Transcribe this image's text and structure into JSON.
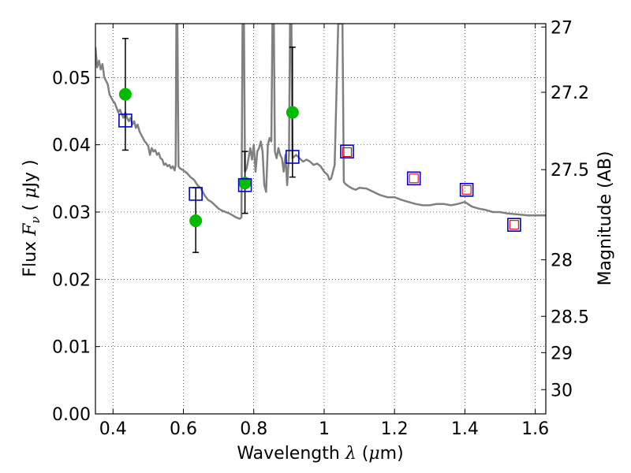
{
  "chart_data": {
    "type": "scatter",
    "xlabel": {
      "prefix": "Wavelength  ",
      "symbol": "λ",
      "suffix": " (",
      "unit_mu": "μ",
      "unit_rest": "m)"
    },
    "ylabel": {
      "prefix": "Flux  ",
      "symbol": "F",
      "subscript": "ν",
      "suffix": "  (  ",
      "unit_mu": "μ",
      "unit_rest": "Jy  )"
    },
    "y2label": "Magnitude (AB)",
    "xlim": [
      0.35,
      1.63
    ],
    "ylim": [
      0.0,
      0.058
    ],
    "grid": true,
    "x_ticks": [
      {
        "v": 0.4,
        "label": "0.4"
      },
      {
        "v": 0.6,
        "label": "0.6"
      },
      {
        "v": 0.8,
        "label": "0.8"
      },
      {
        "v": 1.0,
        "label": "1"
      },
      {
        "v": 1.2,
        "label": "1.2"
      },
      {
        "v": 1.4,
        "label": "1.4"
      },
      {
        "v": 1.6,
        "label": "1.6"
      }
    ],
    "y_ticks": [
      {
        "v": 0.0,
        "label": "0.00"
      },
      {
        "v": 0.01,
        "label": "0.01"
      },
      {
        "v": 0.02,
        "label": "0.02"
      },
      {
        "v": 0.03,
        "label": "0.03"
      },
      {
        "v": 0.04,
        "label": "0.04"
      },
      {
        "v": 0.05,
        "label": "0.05"
      }
    ],
    "y2_ticks": [
      {
        "flux": 0.0575,
        "label": "27"
      },
      {
        "flux": 0.0478,
        "label": "27.2"
      },
      {
        "flux": 0.0363,
        "label": "27.5"
      },
      {
        "flux": 0.0229,
        "label": "28"
      },
      {
        "flux": 0.0145,
        "label": "28.5"
      },
      {
        "flux": 0.0091,
        "label": "29"
      },
      {
        "flux": 0.0036,
        "label": "30"
      }
    ],
    "series": [
      {
        "kind": "line",
        "color": "#808080",
        "points": [
          [
            0.35,
            0.0545
          ],
          [
            0.355,
            0.0515
          ],
          [
            0.36,
            0.0525
          ],
          [
            0.365,
            0.0512
          ],
          [
            0.37,
            0.052
          ],
          [
            0.375,
            0.05
          ],
          [
            0.38,
            0.0495
          ],
          [
            0.385,
            0.049
          ],
          [
            0.39,
            0.0475
          ],
          [
            0.395,
            0.047
          ],
          [
            0.4,
            0.0465
          ],
          [
            0.405,
            0.0462
          ],
          [
            0.41,
            0.0455
          ],
          [
            0.415,
            0.0448
          ],
          [
            0.42,
            0.0452
          ],
          [
            0.425,
            0.0445
          ],
          [
            0.43,
            0.044
          ],
          [
            0.435,
            0.0448
          ],
          [
            0.44,
            0.044
          ],
          [
            0.445,
            0.0435
          ],
          [
            0.45,
            0.044
          ],
          [
            0.455,
            0.043
          ],
          [
            0.46,
            0.0435
          ],
          [
            0.465,
            0.0425
          ],
          [
            0.47,
            0.043
          ],
          [
            0.475,
            0.042
          ],
          [
            0.48,
            0.0415
          ],
          [
            0.485,
            0.041
          ],
          [
            0.49,
            0.0405
          ],
          [
            0.495,
            0.0402
          ],
          [
            0.5,
            0.0398
          ],
          [
            0.505,
            0.0385
          ],
          [
            0.51,
            0.0395
          ],
          [
            0.515,
            0.039
          ],
          [
            0.52,
            0.0392
          ],
          [
            0.525,
            0.0385
          ],
          [
            0.53,
            0.0388
          ],
          [
            0.535,
            0.038
          ],
          [
            0.54,
            0.0378
          ],
          [
            0.545,
            0.037
          ],
          [
            0.55,
            0.0372
          ],
          [
            0.555,
            0.0368
          ],
          [
            0.56,
            0.037
          ],
          [
            0.565,
            0.0365
          ],
          [
            0.57,
            0.0368
          ],
          [
            0.575,
            0.0362
          ],
          [
            0.578,
            0.037
          ],
          [
            0.58,
            0.058
          ],
          [
            0.583,
            0.058
          ],
          [
            0.586,
            0.0368
          ],
          [
            0.59,
            0.0365
          ],
          [
            0.6,
            0.0362
          ],
          [
            0.61,
            0.0358
          ],
          [
            0.62,
            0.0352
          ],
          [
            0.63,
            0.0348
          ],
          [
            0.64,
            0.034
          ],
          [
            0.65,
            0.0335
          ],
          [
            0.66,
            0.0325
          ],
          [
            0.67,
            0.0318
          ],
          [
            0.68,
            0.0315
          ],
          [
            0.69,
            0.031
          ],
          [
            0.7,
            0.0305
          ],
          [
            0.71,
            0.0302
          ],
          [
            0.72,
            0.03
          ],
          [
            0.73,
            0.0298
          ],
          [
            0.74,
            0.0295
          ],
          [
            0.75,
            0.0292
          ],
          [
            0.76,
            0.029
          ],
          [
            0.765,
            0.0292
          ],
          [
            0.768,
            0.058
          ],
          [
            0.772,
            0.058
          ],
          [
            0.775,
            0.036
          ],
          [
            0.78,
            0.0365
          ],
          [
            0.785,
            0.038
          ],
          [
            0.79,
            0.0395
          ],
          [
            0.795,
            0.0378
          ],
          [
            0.8,
            0.04
          ],
          [
            0.805,
            0.036
          ],
          [
            0.81,
            0.039
          ],
          [
            0.815,
            0.0395
          ],
          [
            0.82,
            0.0405
          ],
          [
            0.825,
            0.039
          ],
          [
            0.83,
            0.034
          ],
          [
            0.835,
            0.033
          ],
          [
            0.84,
            0.04
          ],
          [
            0.845,
            0.041
          ],
          [
            0.85,
            0.0405
          ],
          [
            0.853,
            0.058
          ],
          [
            0.857,
            0.058
          ],
          [
            0.86,
            0.039
          ],
          [
            0.865,
            0.038
          ],
          [
            0.87,
            0.0395
          ],
          [
            0.875,
            0.0385
          ],
          [
            0.88,
            0.038
          ],
          [
            0.885,
            0.036
          ],
          [
            0.89,
            0.0385
          ],
          [
            0.895,
            0.034
          ],
          [
            0.9,
            0.0385
          ],
          [
            0.903,
            0.058
          ],
          [
            0.907,
            0.058
          ],
          [
            0.91,
            0.038
          ],
          [
            0.92,
            0.0385
          ],
          [
            0.93,
            0.038
          ],
          [
            0.94,
            0.0375
          ],
          [
            0.95,
            0.0378
          ],
          [
            0.96,
            0.0375
          ],
          [
            0.97,
            0.037
          ],
          [
            0.98,
            0.0372
          ],
          [
            0.99,
            0.0368
          ],
          [
            1.0,
            0.036
          ],
          [
            1.01,
            0.0355
          ],
          [
            1.015,
            0.0348
          ],
          [
            1.02,
            0.035
          ],
          [
            1.025,
            0.036
          ],
          [
            1.03,
            0.037
          ],
          [
            1.04,
            0.058
          ],
          [
            1.052,
            0.058
          ],
          [
            1.056,
            0.0345
          ],
          [
            1.06,
            0.0342
          ],
          [
            1.07,
            0.0338
          ],
          [
            1.08,
            0.0335
          ],
          [
            1.09,
            0.0333
          ],
          [
            1.1,
            0.0336
          ],
          [
            1.12,
            0.0335
          ],
          [
            1.14,
            0.033
          ],
          [
            1.16,
            0.0325
          ],
          [
            1.18,
            0.0322
          ],
          [
            1.2,
            0.0322
          ],
          [
            1.22,
            0.0318
          ],
          [
            1.24,
            0.0315
          ],
          [
            1.26,
            0.0312
          ],
          [
            1.28,
            0.031
          ],
          [
            1.3,
            0.031
          ],
          [
            1.32,
            0.0312
          ],
          [
            1.34,
            0.0312
          ],
          [
            1.36,
            0.031
          ],
          [
            1.38,
            0.0312
          ],
          [
            1.4,
            0.0315
          ],
          [
            1.42,
            0.0308
          ],
          [
            1.44,
            0.0305
          ],
          [
            1.46,
            0.0303
          ],
          [
            1.48,
            0.03
          ],
          [
            1.5,
            0.03
          ],
          [
            1.52,
            0.0298
          ],
          [
            1.54,
            0.0297
          ],
          [
            1.56,
            0.0296
          ],
          [
            1.58,
            0.0295
          ],
          [
            1.6,
            0.0295
          ],
          [
            1.62,
            0.0295
          ],
          [
            1.63,
            0.0295
          ]
        ]
      },
      {
        "kind": "errorbar-points",
        "color": "#00bb00",
        "points": [
          {
            "x": 0.435,
            "y": 0.0475,
            "yerr_low": 0.0392,
            "yerr_high": 0.0558
          },
          {
            "x": 0.635,
            "y": 0.0287,
            "yerr_low": 0.024,
            "yerr_high": 0.0336
          },
          {
            "x": 0.775,
            "y": 0.0343,
            "yerr_low": 0.0298,
            "yerr_high": 0.039
          },
          {
            "x": 0.91,
            "y": 0.0448,
            "yerr_low": 0.0352,
            "yerr_high": 0.0545
          }
        ]
      },
      {
        "kind": "square-markers",
        "color": "#0000cc",
        "points": [
          {
            "x": 0.435,
            "y": 0.0436
          },
          {
            "x": 0.635,
            "y": 0.0327
          },
          {
            "x": 0.775,
            "y": 0.034
          },
          {
            "x": 0.91,
            "y": 0.0382
          },
          {
            "x": 1.065,
            "y": 0.039
          },
          {
            "x": 1.255,
            "y": 0.035
          },
          {
            "x": 1.405,
            "y": 0.0333
          },
          {
            "x": 1.54,
            "y": 0.0281
          }
        ]
      },
      {
        "kind": "small-square-markers",
        "color": "#dd0000",
        "points": [
          {
            "x": 1.065,
            "y": 0.0389
          },
          {
            "x": 1.255,
            "y": 0.035
          },
          {
            "x": 1.405,
            "y": 0.0333
          },
          {
            "x": 1.54,
            "y": 0.0281
          }
        ]
      }
    ]
  }
}
